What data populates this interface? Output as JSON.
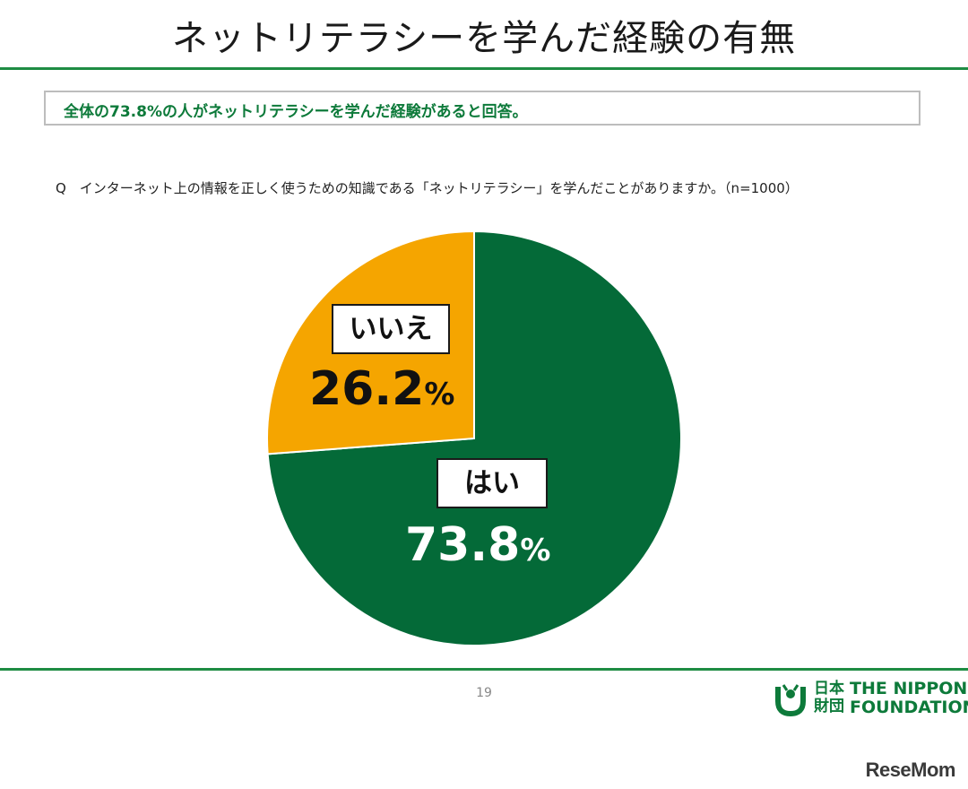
{
  "slide": {
    "title": "ネットリテラシーを学んだ経験の有無",
    "summary": "全体の73.8%の人がネットリテラシーを学んだ経験があると回答。",
    "question": "Q　インターネット上の情報を正しく使うための知識である「ネットリテラシー」を学んだことがありますか。（n=1000）"
  },
  "chart_data": {
    "type": "pie",
    "slices": [
      {
        "label": "はい",
        "value": 73.8,
        "display_value": "73.8",
        "unit": "%",
        "color": "#046a38",
        "text_color": "#ffffff"
      },
      {
        "label": "いいえ",
        "value": 26.2,
        "display_value": "26.2",
        "unit": "%",
        "color": "#f5a500",
        "text_color": "#111111"
      }
    ],
    "start_angle_deg": 0,
    "direction": "clockwise"
  },
  "footer": {
    "page_number": "19",
    "logo_jp_line1": "日本",
    "logo_jp_line2": "財団",
    "logo_en_line1": "THE NIPPON",
    "logo_en_line2": "FOUNDATION",
    "watermark": "ReseMom"
  }
}
